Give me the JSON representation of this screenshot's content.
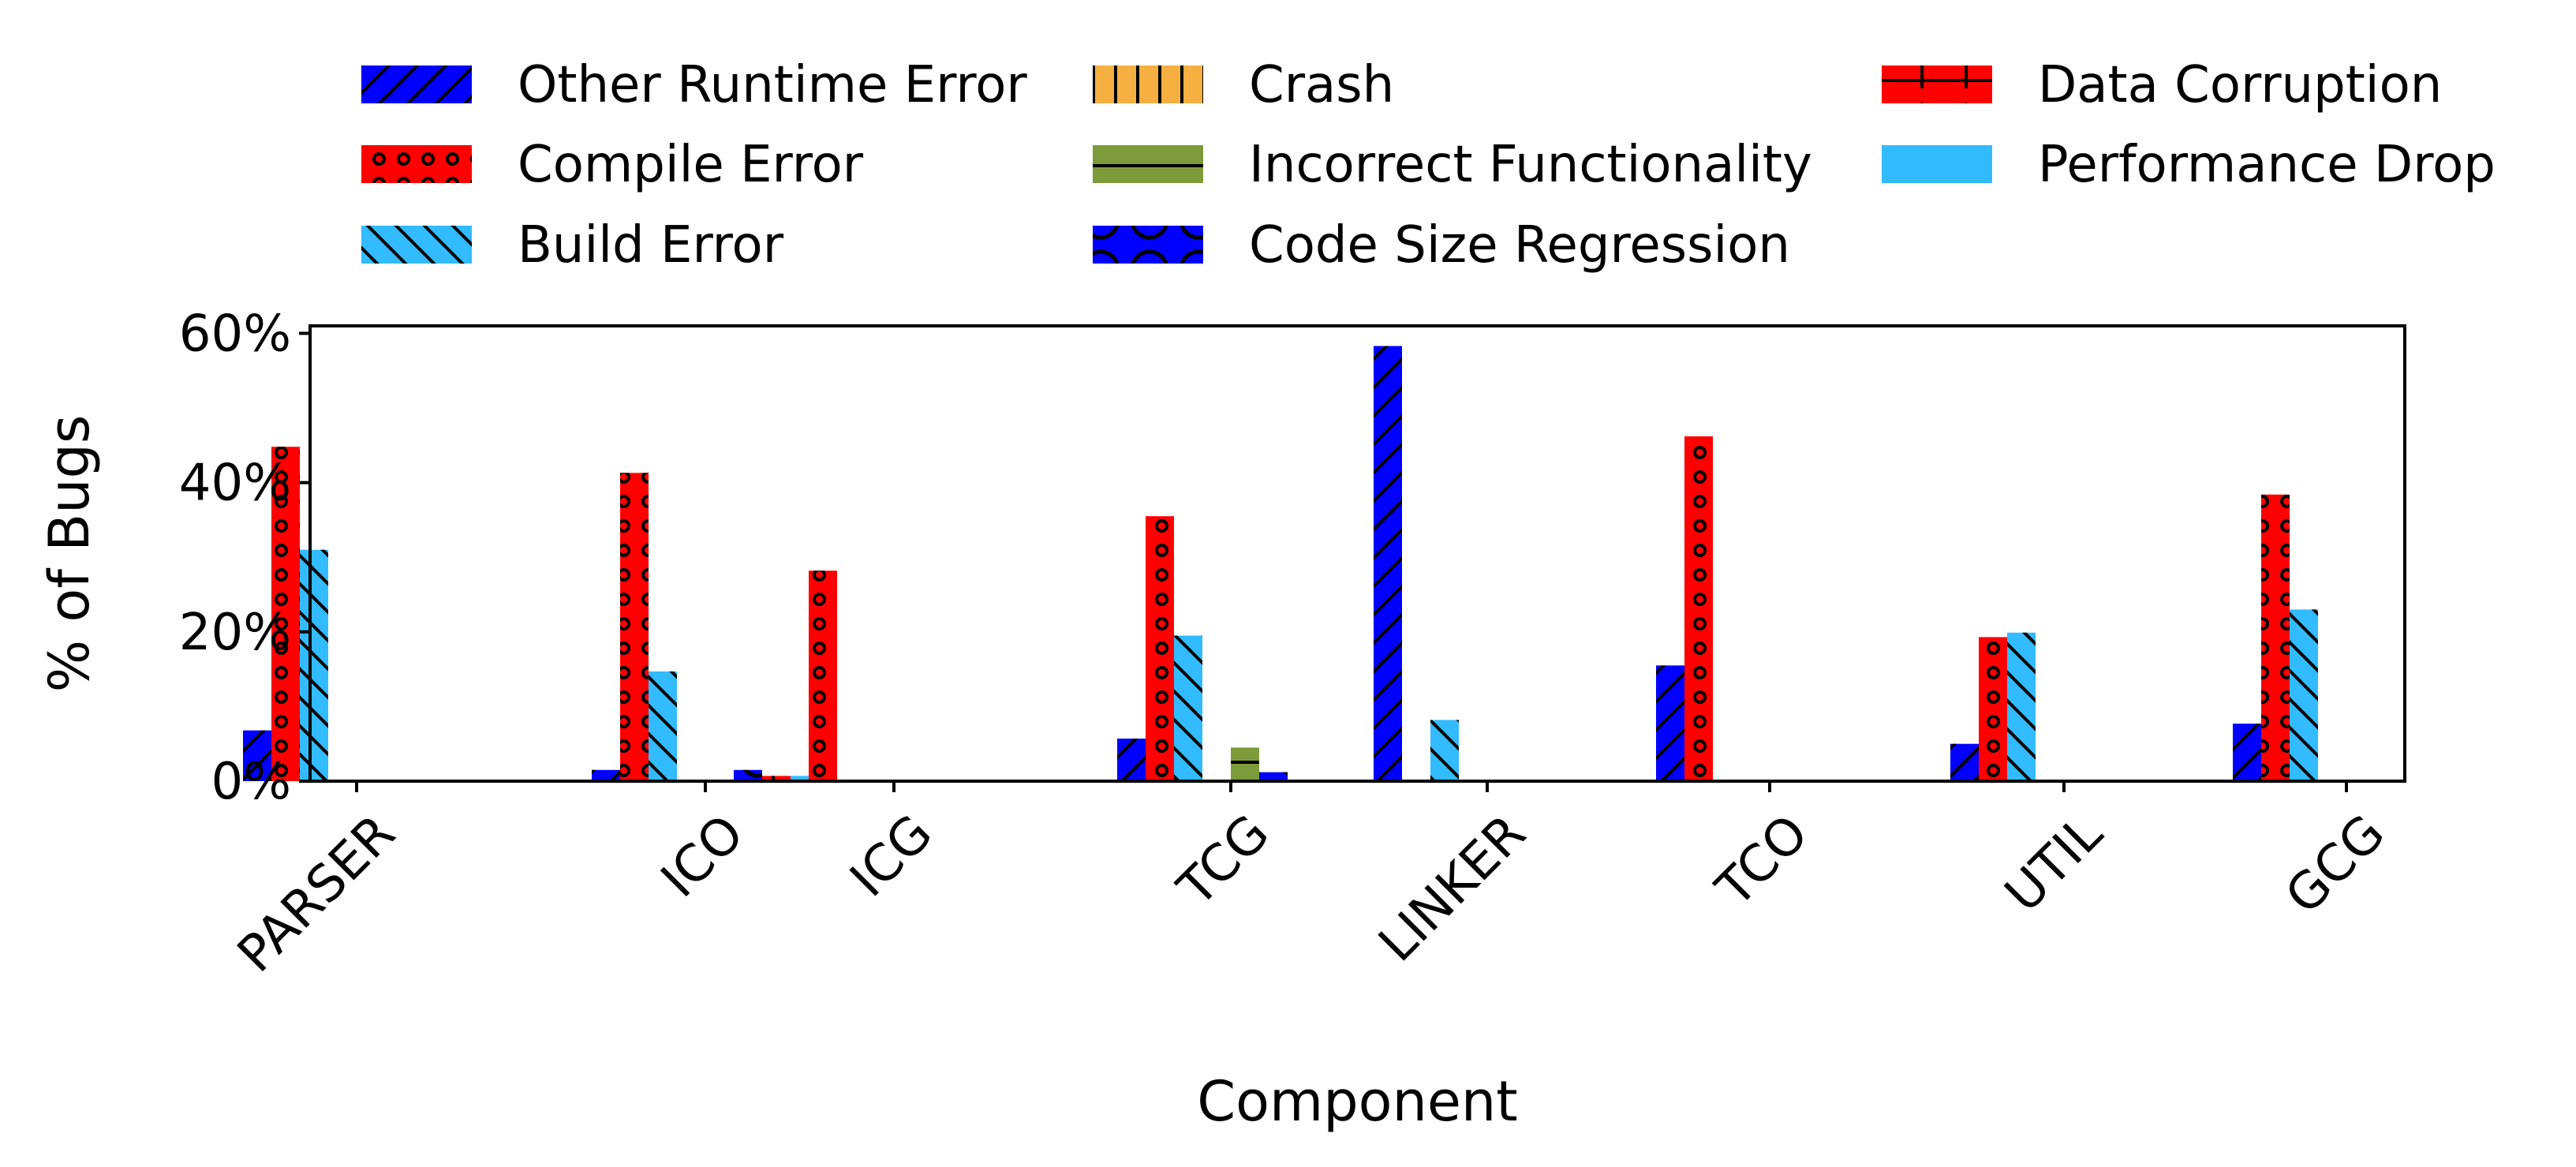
{
  "chart_data": {
    "type": "bar",
    "xlabel": "Component",
    "ylabel": "% of Bugs",
    "ylim": [
      0,
      61
    ],
    "yticks": [
      0,
      20,
      40,
      60
    ],
    "ytick_labels": [
      "0%",
      "20%",
      "40%",
      "60%"
    ],
    "legend_placement": "top, outside plot (3 columns)",
    "grid": false,
    "categories": [
      "PARSER",
      "ICO",
      "ICG",
      "TCG",
      "LINKER",
      "TCO",
      "UTIL",
      "GCG"
    ],
    "series": [
      {
        "name": "Other Runtime Error",
        "color": "#0000ff",
        "hatch": "slash",
        "values": [
          6.8,
          1.5,
          0,
          5.7,
          58.3,
          15.5,
          5.0,
          7.7
        ]
      },
      {
        "name": "Compile Error",
        "color": "#ff0000",
        "hatch": "circles",
        "values": [
          44.8,
          41.3,
          28.2,
          35.5,
          0,
          46.2,
          19.3,
          38.4
        ]
      },
      {
        "name": "Build Error",
        "color": "#33bbff",
        "hatch": "backslash",
        "values": [
          31.0,
          14.7,
          0,
          19.5,
          8.2,
          0,
          19.9,
          23.0
        ]
      },
      {
        "name": "Crash",
        "color": "#f5b041",
        "hatch": "vertical",
        "values": [
          0,
          0,
          0,
          0,
          0,
          0,
          0.2,
          0
        ]
      },
      {
        "name": "Incorrect Functionality",
        "color": "#7d9b3a",
        "hatch": "horizontal",
        "values": [
          0,
          0,
          0,
          4.5,
          0,
          0,
          0.2,
          0
        ]
      },
      {
        "name": "Code Size Regression",
        "color": "#0000ff",
        "hatch": "large-circles",
        "values": [
          0,
          1.5,
          0,
          1.2,
          0,
          0,
          0,
          0
        ]
      },
      {
        "name": "Data Corruption",
        "color": "#ff0000",
        "hatch": "plus",
        "values": [
          0,
          0.7,
          0,
          0,
          0,
          0,
          0,
          0
        ]
      },
      {
        "name": "Performance Drop",
        "color": "#33bbff",
        "hatch": "none",
        "values": [
          0,
          0.7,
          0,
          0,
          0,
          0,
          0,
          0
        ]
      }
    ]
  }
}
